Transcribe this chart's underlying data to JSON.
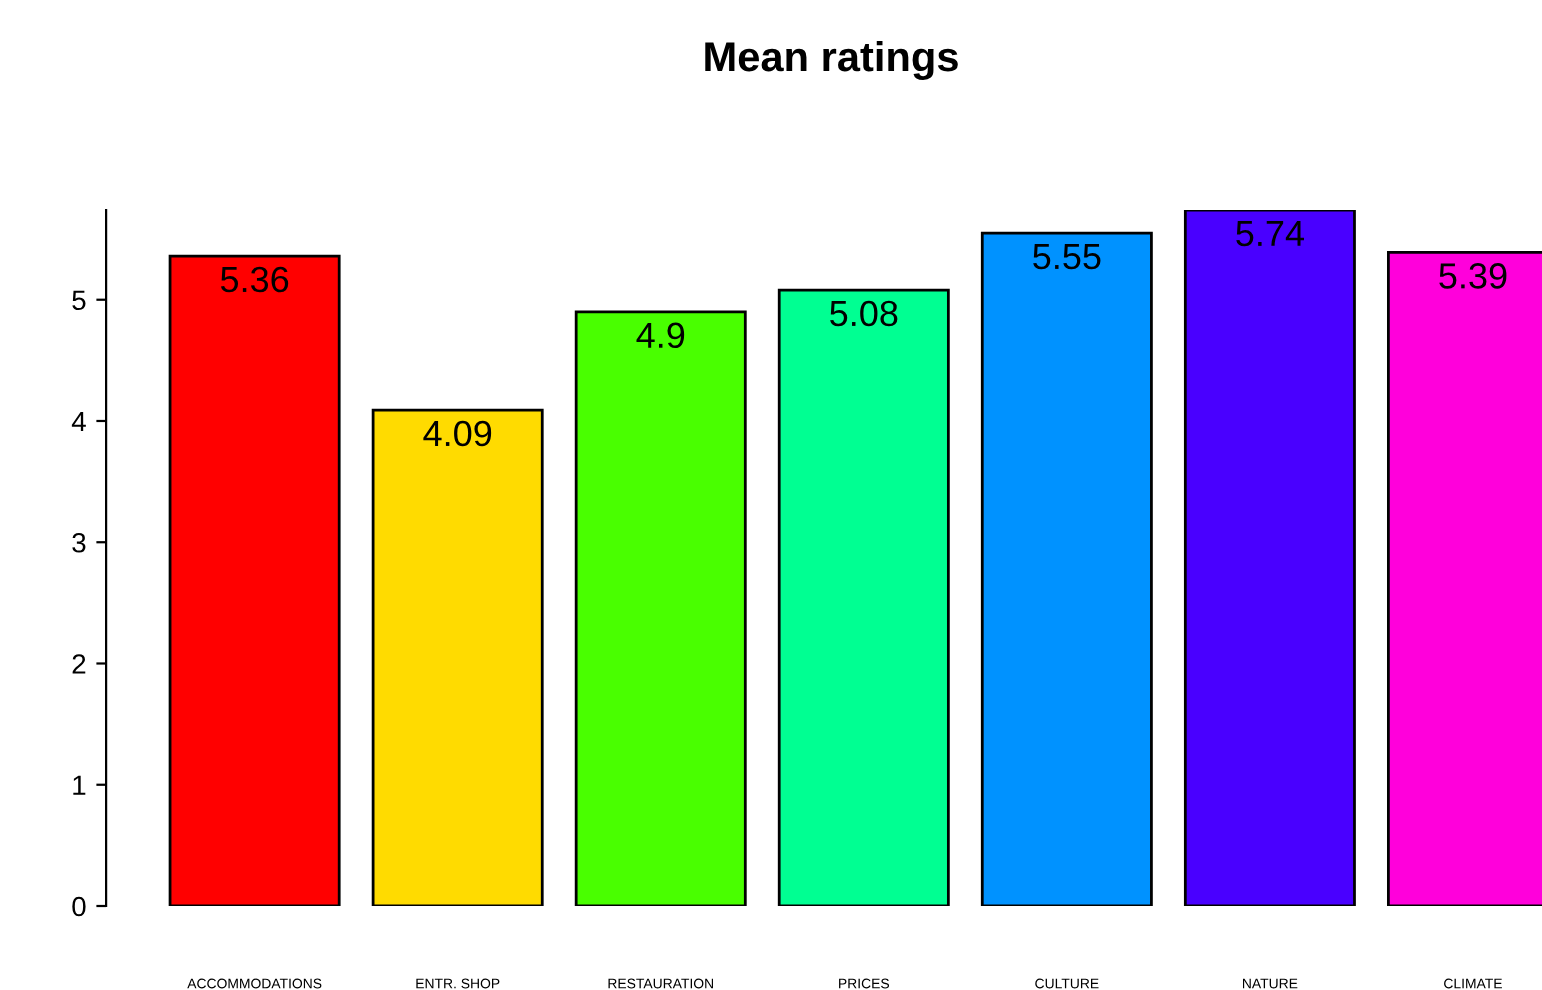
{
  "chart_data": {
    "type": "bar",
    "title": "Mean ratings",
    "categories": [
      "ACCOMMODATIONS",
      "ENTR. SHOP",
      "RESTAURATION",
      "PRICES",
      "CULTURE",
      "NATURE",
      "CLIMATE"
    ],
    "values": [
      5.36,
      4.09,
      4.9,
      5.08,
      5.55,
      5.74,
      5.39
    ],
    "colors": [
      "#ff0000",
      "#ffdb00",
      "#49ff00",
      "#00ff92",
      "#0092ff",
      "#4900ff",
      "#ff00db"
    ],
    "ylim": [
      0,
      5.74
    ],
    "yticks": [
      0,
      1,
      2,
      3,
      4,
      5
    ],
    "data_labels": true,
    "grid": false
  }
}
